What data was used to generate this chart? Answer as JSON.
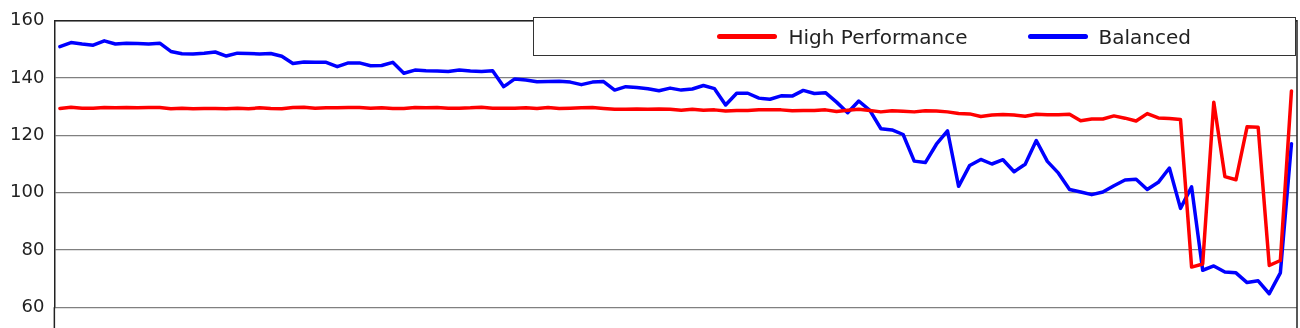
{
  "chart_data": {
    "type": "line",
    "categories": [
      null,
      null,
      null,
      null,
      null,
      null,
      null,
      null,
      null,
      null,
      null,
      null,
      null,
      null,
      null,
      null,
      null,
      null,
      null,
      null,
      null,
      null,
      null,
      null,
      null,
      null,
      null,
      null,
      null,
      null,
      null,
      null,
      null,
      null,
      null,
      null,
      null,
      null,
      null,
      null,
      null,
      null,
      null,
      null,
      null,
      null,
      null,
      null,
      null,
      null,
      null,
      null,
      null,
      null,
      null,
      null,
      null,
      null,
      null,
      null,
      null,
      null,
      null,
      null,
      null,
      null,
      null,
      null,
      null,
      null,
      null,
      null,
      null,
      null,
      null,
      null,
      null,
      null,
      null,
      null,
      null,
      null,
      null,
      null,
      null,
      null,
      null,
      null,
      null,
      null,
      null,
      null,
      null,
      null,
      null,
      null,
      null,
      null,
      null,
      null,
      null,
      null,
      null,
      null,
      null,
      null,
      null,
      null,
      null,
      null,
      null,
      null
    ],
    "series": [
      {
        "name": "High Performance",
        "color": "#ff0000",
        "values": [
          129.4,
          129.8,
          129.5,
          129.5,
          129.7,
          129.6,
          129.7,
          129.6,
          129.7,
          129.7,
          129.3,
          129.5,
          129.3,
          129.4,
          129.4,
          129.3,
          129.5,
          129.3,
          129.6,
          129.4,
          129.3,
          129.7,
          129.8,
          129.5,
          129.6,
          129.6,
          129.7,
          129.7,
          129.5,
          129.6,
          129.4,
          129.4,
          129.7,
          129.6,
          129.7,
          129.5,
          129.5,
          129.6,
          129.8,
          129.5,
          129.5,
          129.5,
          129.6,
          129.4,
          129.7,
          129.4,
          129.5,
          129.6,
          129.7,
          129.4,
          129.1,
          129.1,
          129.2,
          129.1,
          129.2,
          129.1,
          128.8,
          129.1,
          128.8,
          128.9,
          128.5,
          128.7,
          128.7,
          128.9,
          128.9,
          128.9,
          128.6,
          128.7,
          128.7,
          128.9,
          128.3,
          128.8,
          129.1,
          128.7,
          128.2,
          128.6,
          128.4,
          128.2,
          128.6,
          128.5,
          128.2,
          127.6,
          127.5,
          126.6,
          127.1,
          127.3,
          127.1,
          126.7,
          127.4,
          127.2,
          127.2,
          127.4,
          125.1,
          125.7,
          125.7,
          126.8,
          126.0,
          125.0,
          127.6,
          126.1,
          125.9,
          125.5,
          74.0,
          75.1,
          131.6,
          105.6,
          104.5,
          123.0,
          122.8,
          74.6,
          76.3,
          135.5
        ]
      },
      {
        "name": "Balanced",
        "color": "#0000ff",
        "values": [
          151.0,
          152.4,
          151.9,
          151.5,
          153.0,
          151.9,
          152.2,
          152.1,
          151.9,
          152.2,
          149.3,
          148.5,
          148.4,
          148.7,
          149.1,
          147.7,
          148.7,
          148.6,
          148.4,
          148.6,
          147.6,
          145.1,
          145.6,
          145.5,
          145.5,
          144.0,
          145.3,
          145.3,
          144.3,
          144.4,
          145.5,
          141.7,
          142.8,
          142.6,
          142.5,
          142.3,
          142.8,
          142.5,
          142.3,
          142.6,
          137.0,
          139.7,
          139.3,
          138.7,
          138.8,
          138.9,
          138.6,
          137.7,
          138.6,
          138.8,
          135.8,
          137.0,
          136.7,
          136.3,
          135.6,
          136.5,
          135.8,
          136.2,
          137.4,
          136.3,
          130.6,
          134.7,
          134.7,
          133.0,
          132.6,
          133.8,
          133.7,
          135.7,
          134.6,
          134.9,
          131.6,
          127.9,
          132.0,
          128.7,
          122.3,
          121.9,
          120.3,
          111.0,
          110.5,
          116.9,
          121.6,
          102.2,
          109.5,
          111.6,
          110.0,
          111.5,
          107.3,
          109.9,
          118.2,
          110.9,
          106.8,
          101.1,
          100.2,
          99.3,
          100.2,
          102.4,
          104.4,
          104.7,
          101.1,
          103.6,
          108.6,
          94.5,
          102.0,
          72.9,
          74.4,
          72.3,
          72.0,
          68.6,
          69.2,
          64.7,
          72.0,
          117.1
        ]
      }
    ],
    "ylim": [
      60,
      160
    ],
    "yticks": [
      60,
      80,
      100,
      120,
      140,
      160
    ],
    "grid": "y",
    "legend": "top right",
    "tick_labels": "y",
    "line_style": "solid",
    "marker": "none"
  }
}
